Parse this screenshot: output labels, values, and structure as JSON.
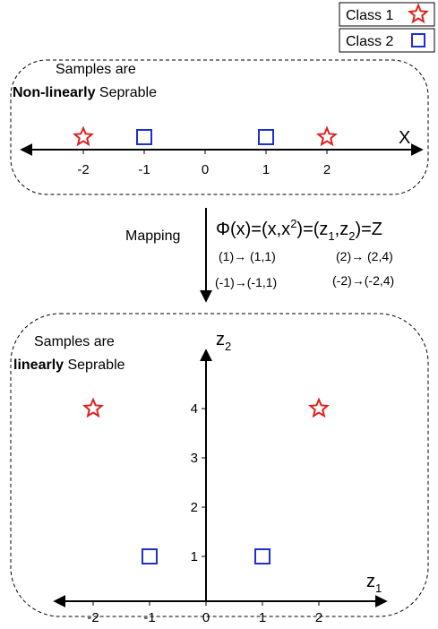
{
  "legend": {
    "items": [
      {
        "label": "Class 1",
        "marker": "star-icon",
        "color": "#e02020"
      },
      {
        "label": "Class 2",
        "marker": "square-icon",
        "color": "#1f2fcf"
      }
    ]
  },
  "top_panel": {
    "caption_line1": "Samples are",
    "caption_bold": "Non-linearly",
    "caption_rest": " Seprable",
    "axis_label": "X",
    "ticks": [
      "-2",
      "-1",
      "0",
      "1",
      "2"
    ],
    "samples": [
      {
        "x": -2,
        "class": "Class 1"
      },
      {
        "x": -1,
        "class": "Class 2"
      },
      {
        "x": 1,
        "class": "Class 2"
      },
      {
        "x": 2,
        "class": "Class 1"
      }
    ]
  },
  "mapping": {
    "label": "Mapping",
    "formula": {
      "phi_prefix": "Φ(x)=(x,x",
      "sup": "2",
      "mid1": ")=(z",
      "sub1": "1",
      "comma": ",z",
      "sub2": "2",
      "suffix": ")=Z"
    },
    "examples": [
      "(1)→ (1,1)",
      "(2)→ (2,4)",
      "(-1)→(-1,1)",
      "(-2)→(-2,4)"
    ]
  },
  "bottom_panel": {
    "caption_line1": "Samples are",
    "caption_bold": "linearly",
    "caption_rest": " Seprable",
    "z1_label": "z",
    "z1_sub": "1",
    "z2_label": "z",
    "z2_sub": "2",
    "x_ticks": [
      "-2",
      "-1",
      "0",
      "1",
      "2"
    ],
    "y_ticks": [
      "1",
      "2",
      "3",
      "4"
    ],
    "samples": [
      {
        "z1": -2,
        "z2": 4,
        "class": "Class 1"
      },
      {
        "z1": 2,
        "z2": 4,
        "class": "Class 1"
      },
      {
        "z1": -1,
        "z2": 1,
        "class": "Class 2"
      },
      {
        "z1": 1,
        "z2": 1,
        "class": "Class 2"
      }
    ]
  }
}
